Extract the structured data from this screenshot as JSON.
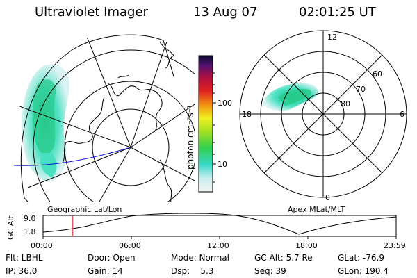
{
  "header": {
    "instrument": "Ultraviolet Imager",
    "date": "13 Aug 07",
    "time": "02:01:25 UT"
  },
  "colorbar": {
    "unit_label": "photon cm⁻²s⁻¹",
    "ticks": [
      "100",
      "10"
    ],
    "scale": "log"
  },
  "geo_panel": {
    "caption": "Geographic Lat/Lon"
  },
  "polar_panel": {
    "caption": "Apex MLat/MLT",
    "mlt_labels": [
      "12",
      "18",
      "6",
      "0"
    ],
    "lat_labels": [
      "60",
      "70",
      "80"
    ]
  },
  "alt_plot": {
    "ylabel": "GC Alt",
    "y_ticks": [
      "9.0",
      "1.8"
    ],
    "x_ticks": [
      "00:00",
      "06:00",
      "12:00",
      "18:00",
      "23:59"
    ],
    "marker_time_hours": 2.02
  },
  "info": {
    "flt": "Flt: LBHL",
    "ip": "IP: 36.0",
    "door": "Door: Open",
    "gain": "Gain: 14",
    "mode": "Mode: Normal",
    "dsp": "Dsp:    5.3",
    "gcalt": "GC Alt: 5.7 Re",
    "seq": "Seq: 39",
    "glat": "GLat: -76.9",
    "glon": "GLon: 190.4"
  },
  "colors": {
    "aurora_high": "#25c98a",
    "aurora_mid": "#47e0c0",
    "aurora_low": "#9fe4e4",
    "line_blue": "#1010cc",
    "marker_red": "#dd2020"
  }
}
